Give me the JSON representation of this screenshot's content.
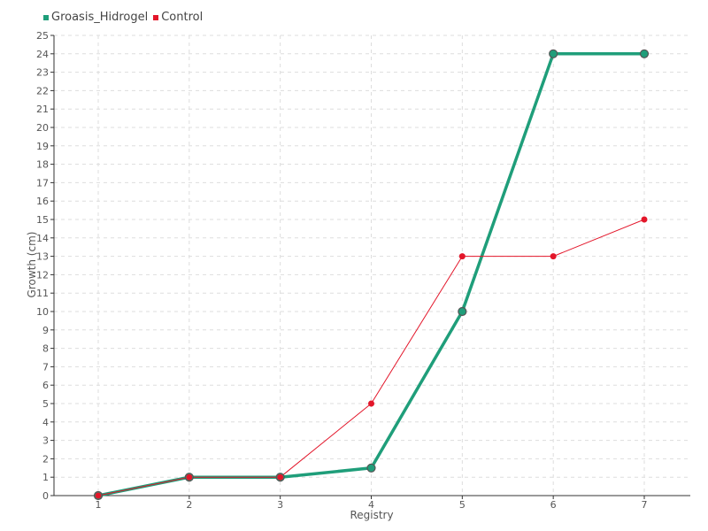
{
  "chart_data": {
    "type": "line",
    "title": "",
    "xlabel": "Registry",
    "ylabel": "Growth (cm)",
    "x": [
      1,
      2,
      3,
      4,
      5,
      6,
      7
    ],
    "ylim": [
      0,
      25
    ],
    "yticks": [
      0,
      1,
      2,
      3,
      4,
      5,
      6,
      7,
      8,
      9,
      10,
      11,
      12,
      13,
      14,
      15,
      16,
      17,
      18,
      19,
      20,
      21,
      22,
      23,
      24,
      25
    ],
    "grid": true,
    "legend_position": "top-left",
    "series": [
      {
        "name": "Groasis_Hidrogel",
        "color": "#1f9e7a",
        "values": [
          0,
          1,
          1,
          1.5,
          10,
          24,
          24
        ]
      },
      {
        "name": "Control",
        "color": "#e3162a",
        "values": [
          0,
          1,
          1,
          5,
          13,
          13,
          15
        ]
      }
    ]
  }
}
